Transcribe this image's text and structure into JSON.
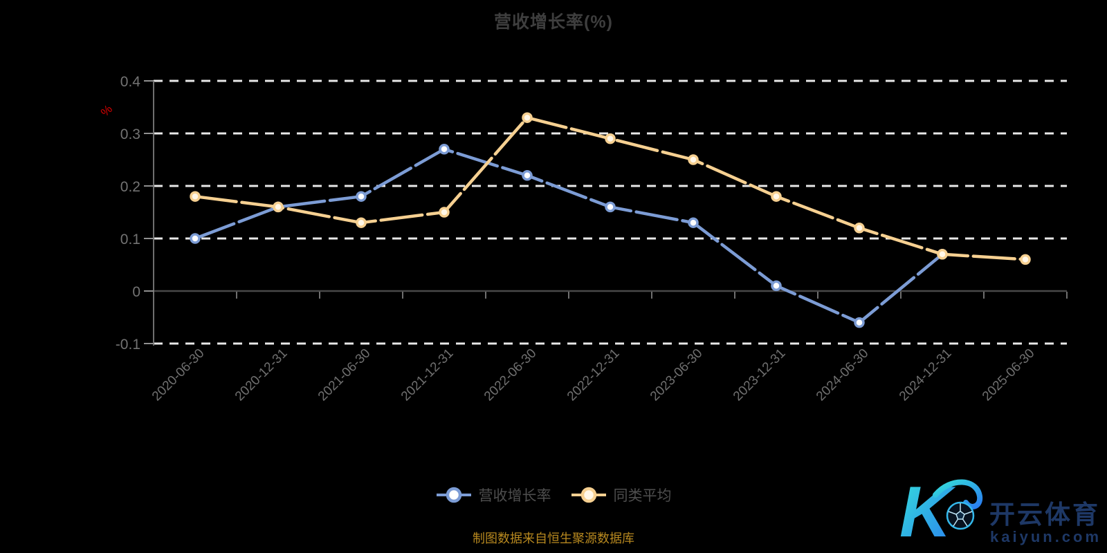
{
  "source_note": "制图数据来自恒生聚源数据库",
  "watermark": {
    "k": "K",
    "cn": "开云体育",
    "url": "kaiyun.com"
  },
  "colors": {
    "background": "#000000",
    "title": "#3e3e3e",
    "grid_dashed": "#e8e8e8",
    "zero_line": "#484848",
    "y_axis_line": "#6f6f6f",
    "tick": "#909090",
    "axis_label": "#737373",
    "x_label": "#6f6f6f",
    "unit_label": "#d40000",
    "legend_text": "#4e4e4e",
    "source_text": "#b8891f",
    "watermark_text": "#1e3866",
    "watermark_gradient_start": "#35e0db",
    "watermark_gradient_end": "#2a7df0"
  },
  "chart_data": {
    "type": "line",
    "title": "营收增长率(%)",
    "ylabel": "%",
    "xlabel": "",
    "grid": true,
    "legend_position": "bottom",
    "ylim": [
      -0.1,
      0.4
    ],
    "yticks": [
      -0.1,
      0,
      0.1,
      0.2,
      0.3,
      0.4
    ],
    "ytick_labels": [
      "-0.1",
      "0",
      "0.1",
      "0.2",
      "0.3",
      "0.4"
    ],
    "categories": [
      "2020-06-30",
      "2020-12-31",
      "2021-06-30",
      "2021-12-31",
      "2022-06-30",
      "2022-12-31",
      "2023-06-30",
      "2023-12-31",
      "2024-06-30",
      "2024-12-31",
      "2025-06-30"
    ],
    "series": [
      {
        "name": "营收增长率",
        "color": "#7c9cd5",
        "marker_fill": "#ffffff",
        "values": [
          0.1,
          0.16,
          0.18,
          0.27,
          0.22,
          0.16,
          0.13,
          0.01,
          -0.06,
          0.07,
          null
        ]
      },
      {
        "name": "同类平均",
        "color": "#f6d091",
        "marker_fill": "#fff7e8",
        "values": [
          0.18,
          0.16,
          0.13,
          0.15,
          0.33,
          0.29,
          0.25,
          0.18,
          0.12,
          0.07,
          0.06
        ]
      }
    ]
  }
}
